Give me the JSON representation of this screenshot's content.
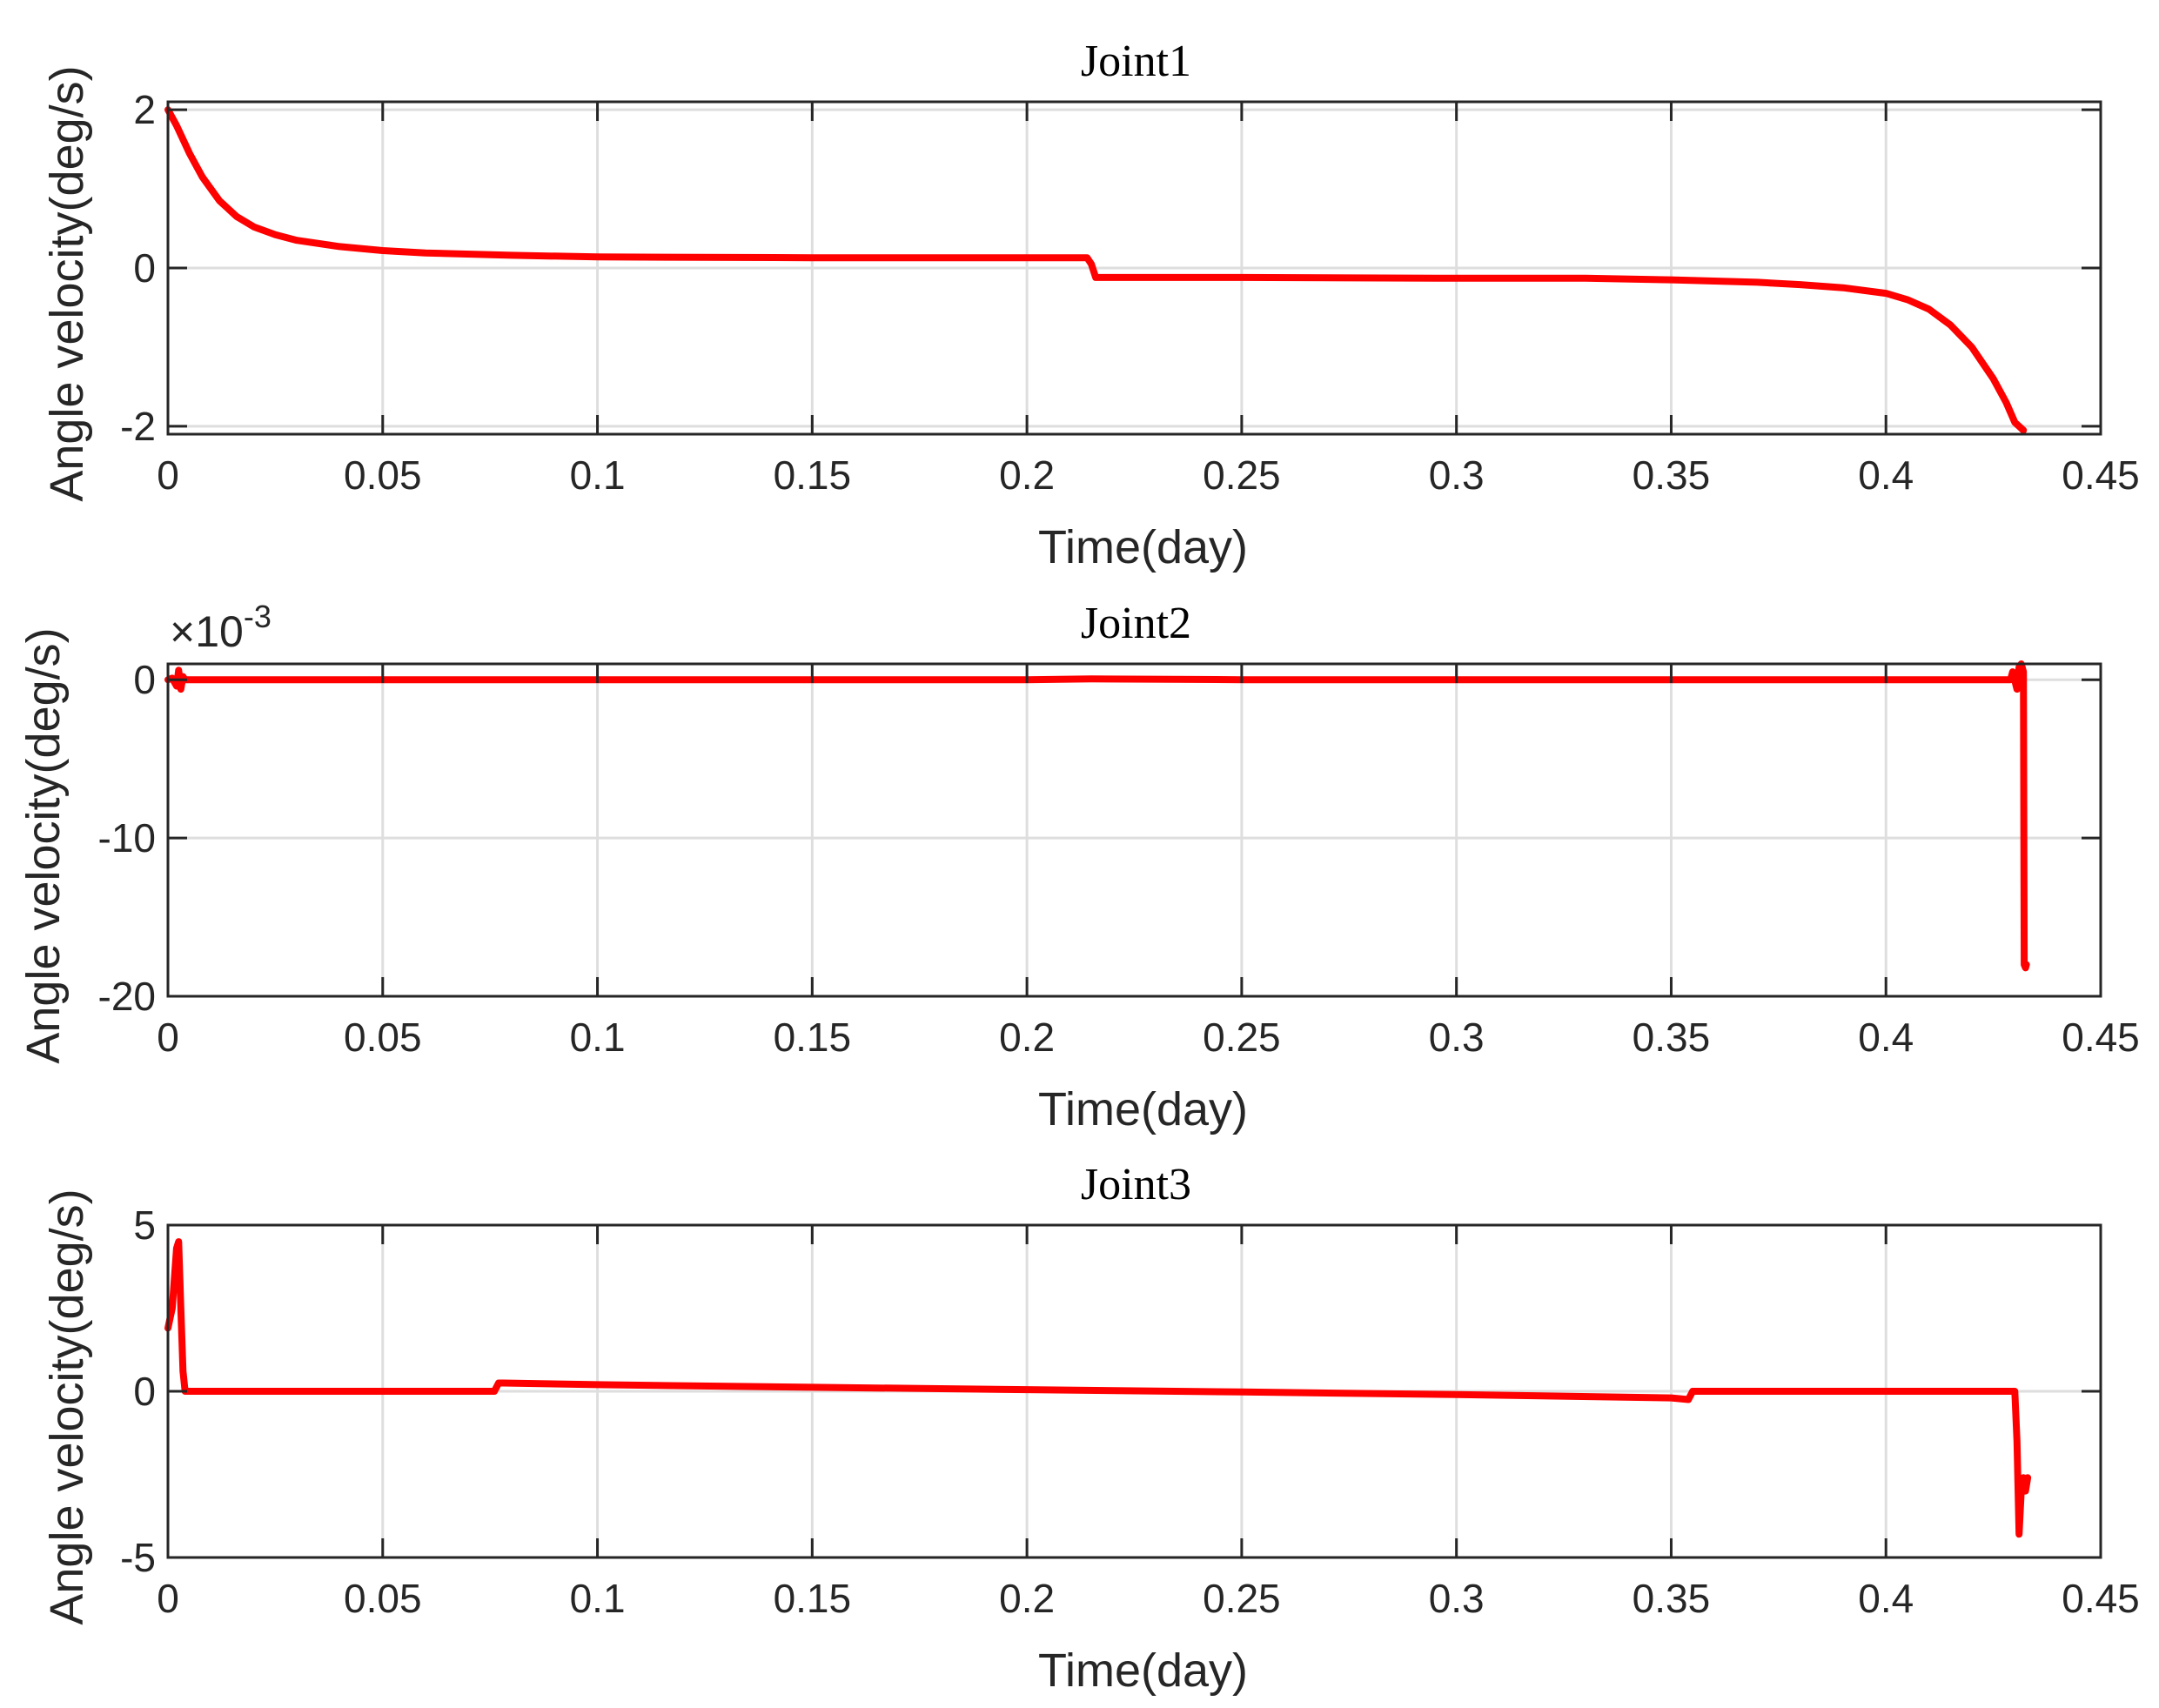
{
  "colors": {
    "series": "#ff0000",
    "grid": "#dedede",
    "axis": "#262626",
    "background": "#ffffff"
  },
  "chart_data": [
    {
      "type": "line",
      "title": "Joint1",
      "xlabel": "Time(day)",
      "ylabel": "Angle velocity(deg/s)",
      "xlim": [
        0,
        0.45
      ],
      "ylim": [
        -2.1,
        2.1
      ],
      "xticks": [
        0,
        0.05,
        0.1,
        0.15,
        0.2,
        0.25,
        0.3,
        0.35,
        0.4,
        0.45
      ],
      "xtick_labels": [
        "0",
        "0.05",
        "0.1",
        "0.15",
        "0.2",
        "0.25",
        "0.3",
        "0.35",
        "0.4",
        "0.45"
      ],
      "yticks": [
        -2,
        0,
        2
      ],
      "ytick_labels": [
        "-2",
        "0",
        "2"
      ],
      "y_exponent": "",
      "grid": true,
      "series": [
        {
          "color": "#ff0000",
          "x": [
            0,
            0.002,
            0.005,
            0.008,
            0.012,
            0.016,
            0.02,
            0.025,
            0.03,
            0.04,
            0.05,
            0.06,
            0.08,
            0.1,
            0.15,
            0.2,
            0.214,
            0.215,
            0.216,
            0.2165,
            0.22,
            0.25,
            0.3,
            0.33,
            0.35,
            0.37,
            0.38,
            0.39,
            0.4,
            0.405,
            0.41,
            0.415,
            0.42,
            0.425,
            0.428,
            0.43,
            0.432
          ],
          "y": [
            2.0,
            1.8,
            1.45,
            1.15,
            0.85,
            0.65,
            0.52,
            0.42,
            0.35,
            0.27,
            0.22,
            0.19,
            0.16,
            0.14,
            0.13,
            0.13,
            0.13,
            0.05,
            -0.12,
            -0.12,
            -0.12,
            -0.12,
            -0.13,
            -0.13,
            -0.15,
            -0.18,
            -0.21,
            -0.25,
            -0.32,
            -0.4,
            -0.52,
            -0.72,
            -1.0,
            -1.4,
            -1.7,
            -1.95,
            -2.05
          ]
        }
      ]
    },
    {
      "type": "line",
      "title": "Joint2",
      "xlabel": "Time(day)",
      "ylabel": "Angle velocity(deg/s)",
      "xlim": [
        0,
        0.45
      ],
      "ylim": [
        -20,
        1
      ],
      "xticks": [
        0,
        0.05,
        0.1,
        0.15,
        0.2,
        0.25,
        0.3,
        0.35,
        0.4,
        0.45
      ],
      "xtick_labels": [
        "0",
        "0.05",
        "0.1",
        "0.15",
        "0.2",
        "0.25",
        "0.3",
        "0.35",
        "0.4",
        "0.45"
      ],
      "yticks": [
        -20,
        -10,
        0
      ],
      "ytick_labels": [
        "-20",
        "-10",
        "0"
      ],
      "y_exponent": "×10",
      "y_exponent_power": "-3",
      "grid": true,
      "series": [
        {
          "color": "#ff0000",
          "x": [
            0,
            0.001,
            0.002,
            0.0025,
            0.003,
            0.0035,
            0.004,
            0.05,
            0.1,
            0.2,
            0.215,
            0.25,
            0.3,
            0.35,
            0.4,
            0.429,
            0.4295,
            0.4305,
            0.431,
            0.4315,
            0.432,
            0.4322,
            0.4325,
            0.4327
          ],
          "y": [
            0,
            0.1,
            -0.4,
            0.6,
            -0.6,
            0.2,
            0,
            0,
            0,
            0,
            0.05,
            0,
            0,
            0,
            0,
            0,
            0.5,
            -0.6,
            0.8,
            1.0,
            0.5,
            -18.0,
            -18.2,
            -18.0
          ]
        }
      ]
    },
    {
      "type": "line",
      "title": "Joint3",
      "xlabel": "Time(day)",
      "ylabel": "Angle velocity(deg/s)",
      "xlim": [
        0,
        0.45
      ],
      "ylim": [
        -5,
        5
      ],
      "xticks": [
        0,
        0.05,
        0.1,
        0.15,
        0.2,
        0.25,
        0.3,
        0.35,
        0.4,
        0.45
      ],
      "xtick_labels": [
        "0",
        "0.05",
        "0.1",
        "0.15",
        "0.2",
        "0.25",
        "0.3",
        "0.35",
        "0.4",
        "0.45"
      ],
      "yticks": [
        -5,
        0,
        5
      ],
      "ytick_labels": [
        "-5",
        "0",
        "5"
      ],
      "y_exponent": "",
      "grid": true,
      "series": [
        {
          "color": "#ff0000",
          "x": [
            0,
            0.001,
            0.002,
            0.0025,
            0.003,
            0.0035,
            0.004,
            0.01,
            0.05,
            0.076,
            0.077,
            0.078,
            0.1,
            0.15,
            0.2,
            0.25,
            0.3,
            0.35,
            0.354,
            0.355,
            0.356,
            0.4,
            0.43,
            0.4305,
            0.431,
            0.4315,
            0.432,
            0.4325,
            0.433
          ],
          "y": [
            1.9,
            2.5,
            4.3,
            4.5,
            2.5,
            0.6,
            0,
            0,
            0,
            0,
            0.25,
            0.25,
            0.2,
            0.12,
            0.05,
            -0.02,
            -0.1,
            -0.2,
            -0.25,
            0,
            0,
            0,
            0,
            -1.5,
            -4.3,
            -3.0,
            -2.6,
            -3.0,
            -2.6
          ]
        }
      ]
    }
  ]
}
